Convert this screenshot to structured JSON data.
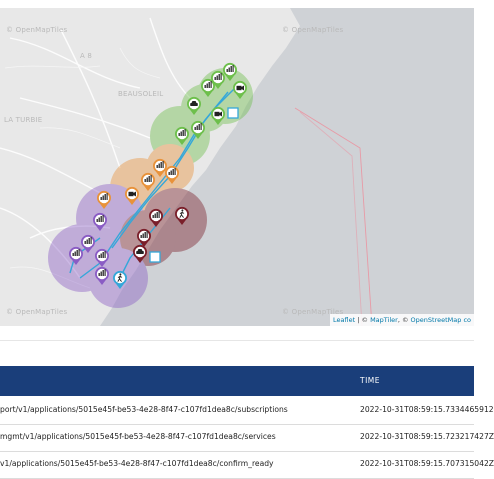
{
  "map": {
    "labels": {
      "omt_top_left": "© OpenMapTiles",
      "omt_top_right": "© OpenMapTiles",
      "ae": "A 8",
      "beausoleil": "BEAUSOLEIL",
      "la_turbie": "LA TURBIE",
      "omt_bottom_left": "© OpenMapTiles",
      "omt_bottom_right": "© OpenMapTiles"
    },
    "attribution": {
      "leaflet": "Leaflet",
      "sep1": " | © ",
      "maptiler": "MapTiler",
      "sep2": ", © ",
      "osm": "OpenStreetMap co"
    },
    "colors": {
      "land": "#e8e8e8",
      "sea": "#cfd2d6",
      "green": "#6dbf4b",
      "orange": "#e8923a",
      "purple": "#8a5cc4",
      "maroon": "#7a1f2a",
      "route": "#35a7d9"
    },
    "markers": [
      {
        "icon": "cell-tower-icon",
        "color": "#6dbf4b"
      },
      {
        "icon": "cell-tower-icon",
        "color": "#6dbf4b"
      },
      {
        "icon": "cell-tower-icon",
        "color": "#6dbf4b"
      },
      {
        "icon": "camera-icon",
        "color": "#6dbf4b"
      },
      {
        "icon": "car-icon",
        "color": "#6dbf4b"
      },
      {
        "icon": "camera-icon",
        "color": "#6dbf4b"
      },
      {
        "icon": "cell-tower-icon",
        "color": "#6dbf4b"
      },
      {
        "icon": "cell-tower-icon",
        "color": "#6dbf4b"
      },
      {
        "icon": "cell-tower-icon",
        "color": "#e8923a"
      },
      {
        "icon": "cell-tower-icon",
        "color": "#e8923a"
      },
      {
        "icon": "cell-tower-icon",
        "color": "#e8923a"
      },
      {
        "icon": "camera-icon",
        "color": "#e8923a"
      },
      {
        "icon": "cell-tower-icon",
        "color": "#e8923a"
      },
      {
        "icon": "cell-tower-icon",
        "color": "#8a5cc4"
      },
      {
        "icon": "cell-tower-icon",
        "color": "#8a5cc4"
      },
      {
        "icon": "cell-tower-icon",
        "color": "#8a5cc4"
      },
      {
        "icon": "cell-tower-icon",
        "color": "#8a5cc4"
      },
      {
        "icon": "cell-tower-icon",
        "color": "#8a5cc4"
      },
      {
        "icon": "cell-tower-icon",
        "color": "#7a1f2a"
      },
      {
        "icon": "cell-tower-icon",
        "color": "#7a1f2a"
      },
      {
        "icon": "pedestrian-icon",
        "color": "#7a1f2a"
      },
      {
        "icon": "car-icon",
        "color": "#7a1f2a"
      },
      {
        "icon": "pedestrian-icon",
        "color": "#35a7d9"
      }
    ]
  },
  "table": {
    "header": {
      "time": "TIME"
    },
    "rows": [
      {
        "path": "port/v1/applications/5015e45f-be53-4e28-8f47-c107fd1dea8c/subscriptions",
        "time": "2022-10-31T08:59:15.7334465912"
      },
      {
        "path": "mgmt/v1/applications/5015e45f-be53-4e28-8f47-c107fd1dea8c/services",
        "time": "2022-10-31T08:59:15.723217427Z"
      },
      {
        "path": "v1/applications/5015e45f-be53-4e28-8f47-c107fd1dea8c/confirm_ready",
        "time": "2022-10-31T08:59:15.707315042Z"
      }
    ]
  }
}
